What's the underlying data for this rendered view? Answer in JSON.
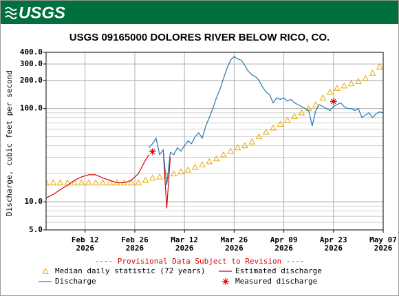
{
  "header": {
    "logo": "USGS"
  },
  "chart_data": {
    "type": "line",
    "title": "USGS 09165000 DOLORES RIVER BELOW RICO, CO.",
    "y_label": "Discharge, cubic feet per second",
    "notice": "---- Provisional Data Subject to Revision ----",
    "log_y": true,
    "grid": true,
    "ylim": [
      5,
      400
    ],
    "yticks": [
      {
        "value": 400,
        "label": "400.0"
      },
      {
        "value": 300,
        "label": "300.0"
      },
      {
        "value": 200,
        "label": "200.0"
      },
      {
        "value": 100,
        "label": "100.0"
      },
      {
        "value": 10,
        "label": "10.0"
      },
      {
        "value": 5,
        "label": "5.0"
      }
    ],
    "xlim": [
      "2026-02-01",
      "2026-05-07"
    ],
    "xticks": [
      {
        "value": "2026-02-12",
        "label": "Feb 12",
        "year": "2026"
      },
      {
        "value": "2026-02-26",
        "label": "Feb 26",
        "year": "2026"
      },
      {
        "value": "2026-03-12",
        "label": "Mar 12",
        "year": "2026"
      },
      {
        "value": "2026-03-26",
        "label": "Mar 26",
        "year": "2026"
      },
      {
        "value": "2026-04-09",
        "label": "Apr 09",
        "year": "2026"
      },
      {
        "value": "2026-04-23",
        "label": "Apr 23",
        "year": "2026"
      },
      {
        "value": "2026-05-07",
        "label": "May 07",
        "year": "2026"
      }
    ],
    "series": [
      {
        "name": "Median daily statistic (72 years)",
        "color": "#e6a800",
        "style": "triangle",
        "x": [
          "2026-02-01",
          "2026-02-03",
          "2026-02-05",
          "2026-02-07",
          "2026-02-09",
          "2026-02-11",
          "2026-02-13",
          "2026-02-15",
          "2026-02-17",
          "2026-02-19",
          "2026-02-21",
          "2026-02-23",
          "2026-02-25",
          "2026-02-27",
          "2026-03-01",
          "2026-03-03",
          "2026-03-05",
          "2026-03-07",
          "2026-03-09",
          "2026-03-11",
          "2026-03-13",
          "2026-03-15",
          "2026-03-17",
          "2026-03-19",
          "2026-03-21",
          "2026-03-23",
          "2026-03-25",
          "2026-03-27",
          "2026-03-29",
          "2026-03-31",
          "2026-04-02",
          "2026-04-04",
          "2026-04-06",
          "2026-04-08",
          "2026-04-10",
          "2026-04-12",
          "2026-04-14",
          "2026-04-16",
          "2026-04-18",
          "2026-04-20",
          "2026-04-22",
          "2026-04-24",
          "2026-04-26",
          "2026-04-28",
          "2026-04-30",
          "2026-05-02",
          "2026-05-04",
          "2026-05-06"
        ],
        "values": [
          16,
          16,
          16,
          16,
          16,
          16,
          16,
          16,
          16,
          16,
          16,
          16,
          16,
          16,
          17,
          18,
          18.5,
          19,
          20,
          21,
          22,
          23.5,
          25,
          27,
          29,
          32,
          35,
          38,
          40,
          44,
          50,
          56,
          62,
          68,
          75,
          82,
          90,
          100,
          110,
          130,
          150,
          165,
          175,
          185,
          195,
          210,
          240,
          280
        ]
      },
      {
        "name": "Estimated discharge",
        "color": "#dd0000",
        "style": "line",
        "x": [
          "2026-02-01",
          "2026-02-03",
          "2026-02-05",
          "2026-02-07",
          "2026-02-09",
          "2026-02-11",
          "2026-02-13",
          "2026-02-15",
          "2026-02-17",
          "2026-02-19",
          "2026-02-21",
          "2026-02-23",
          "2026-02-25",
          "2026-02-27",
          "2026-03-01",
          "2026-03-02",
          "2026-03-03",
          "2026-03-06",
          "2026-03-07",
          "2026-03-08"
        ],
        "values": [
          11,
          12,
          13.5,
          15,
          17,
          18.5,
          19.5,
          19.5,
          18,
          17,
          16,
          16,
          17,
          20,
          28,
          32,
          null,
          36,
          8.5,
          30
        ]
      },
      {
        "name": "Discharge",
        "color": "#1f77b4",
        "style": "line",
        "x": [
          "2026-03-02",
          "2026-03-03",
          "2026-03-04",
          "2026-03-05",
          "2026-03-06",
          "2026-03-07",
          "2026-03-08",
          "2026-03-09",
          "2026-03-10",
          "2026-03-11",
          "2026-03-12",
          "2026-03-13",
          "2026-03-14",
          "2026-03-15",
          "2026-03-16",
          "2026-03-17",
          "2026-03-18",
          "2026-03-19",
          "2026-03-20",
          "2026-03-21",
          "2026-03-22",
          "2026-03-23",
          "2026-03-24",
          "2026-03-25",
          "2026-03-26",
          "2026-03-27",
          "2026-03-28",
          "2026-03-29",
          "2026-03-30",
          "2026-03-31",
          "2026-04-01",
          "2026-04-02",
          "2026-04-03",
          "2026-04-04",
          "2026-04-05",
          "2026-04-06",
          "2026-04-07",
          "2026-04-08",
          "2026-04-09",
          "2026-04-10",
          "2026-04-11",
          "2026-04-12",
          "2026-04-13",
          "2026-04-14",
          "2026-04-15",
          "2026-04-16",
          "2026-04-17",
          "2026-04-18",
          "2026-04-19",
          "2026-04-20",
          "2026-04-21",
          "2026-04-22",
          "2026-04-23",
          "2026-04-24",
          "2026-04-25",
          "2026-04-26",
          "2026-04-27",
          "2026-04-28",
          "2026-04-29",
          "2026-04-30",
          "2026-05-01",
          "2026-05-02",
          "2026-05-03",
          "2026-05-04",
          "2026-05-05",
          "2026-05-06",
          "2026-05-07"
        ],
        "values": [
          38,
          42,
          48,
          32,
          36,
          15,
          34,
          32,
          38,
          35,
          40,
          45,
          42,
          50,
          55,
          48,
          65,
          80,
          100,
          130,
          160,
          210,
          270,
          330,
          360,
          340,
          330,
          290,
          250,
          230,
          220,
          200,
          170,
          150,
          140,
          115,
          130,
          125,
          130,
          120,
          125,
          115,
          110,
          105,
          100,
          95,
          65,
          95,
          110,
          105,
          100,
          95,
          105,
          110,
          115,
          105,
          100,
          100,
          95,
          100,
          80,
          85,
          90,
          80,
          88,
          92,
          90
        ]
      },
      {
        "name": "Measured discharge",
        "color": "#dd0000",
        "style": "star",
        "x": [
          "2026-03-03",
          "2026-04-23"
        ],
        "values": [
          34.5,
          119
        ]
      }
    ]
  }
}
